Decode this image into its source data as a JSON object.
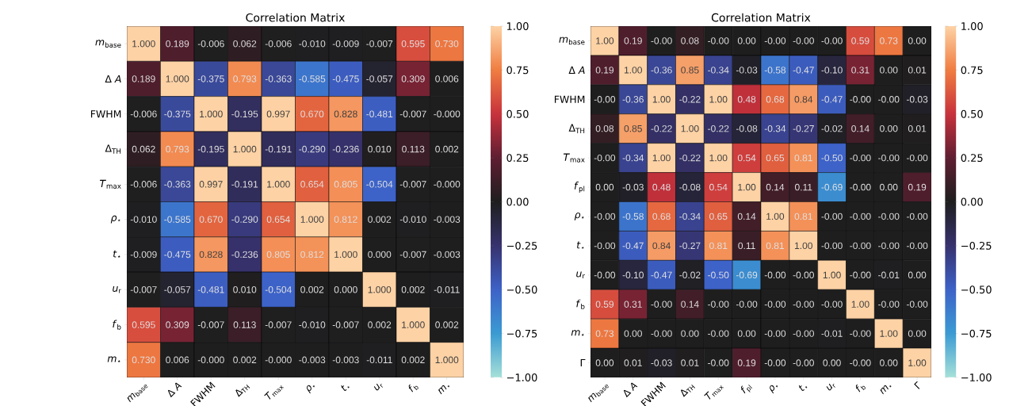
{
  "chart_data": [
    {
      "type": "heatmap",
      "title": "Correlation Matrix",
      "categories": [
        "*m*$_{base}$",
        "Δ *A*",
        "FWHM",
        "Δ$_{TH}$",
        "*T*$_{max}$",
        "*ρ*$_{⋆}$",
        "*t*$_{⋆}$",
        "*u*$_{r}$",
        "*f*$_{b}$",
        "*m*$_{⋆}$"
      ],
      "y_categories": [
        "*m*$_{base}$",
        "Δ *A*",
        "FWHM",
        "Δ$_{TH}$",
        "*T*$_{max}$",
        "*ρ*$_{⋆}$",
        "*t*$_{⋆}$",
        "*u*$_{r}$",
        "*f*$_{b}$",
        "*m*$_{⋆}$"
      ],
      "cells": [
        [
          1.0,
          0.189,
          -0.006,
          0.062,
          -0.006,
          -0.01,
          -0.009,
          -0.007,
          0.595,
          0.73
        ],
        [
          0.189,
          1.0,
          -0.375,
          0.793,
          -0.363,
          -0.585,
          -0.475,
          -0.057,
          0.309,
          0.006
        ],
        [
          -0.006,
          -0.375,
          1.0,
          -0.195,
          0.997,
          0.67,
          0.828,
          -0.481,
          -0.007,
          -0.0
        ],
        [
          0.062,
          0.793,
          -0.195,
          1.0,
          -0.191,
          -0.29,
          -0.236,
          0.01,
          0.113,
          0.002
        ],
        [
          -0.006,
          -0.363,
          0.997,
          -0.191,
          1.0,
          0.654,
          0.805,
          -0.504,
          -0.007,
          -0.0
        ],
        [
          -0.01,
          -0.585,
          0.67,
          -0.29,
          0.654,
          1.0,
          0.812,
          0.002,
          -0.01,
          -0.003
        ],
        [
          -0.009,
          -0.475,
          0.828,
          -0.236,
          0.805,
          0.812,
          1.0,
          0.0,
          -0.007,
          -0.003
        ],
        [
          -0.007,
          -0.057,
          -0.481,
          0.01,
          -0.504,
          0.002,
          0.0,
          1.0,
          0.002,
          -0.011
        ],
        [
          0.595,
          0.309,
          -0.007,
          0.113,
          -0.007,
          -0.01,
          -0.007,
          0.002,
          1.0,
          0.002
        ],
        [
          0.73,
          0.006,
          -0.0,
          0.002,
          -0.0,
          -0.003,
          -0.003,
          -0.011,
          0.002,
          1.0
        ]
      ],
      "cell_labels": [
        [
          "1.000",
          "0.189",
          "-0.006",
          "0.062",
          "-0.006",
          "-0.010",
          "-0.009",
          "-0.007",
          "0.595",
          "0.730"
        ],
        [
          "0.189",
          "1.000",
          "-0.375",
          "0.793",
          "-0.363",
          "-0.585",
          "-0.475",
          "-0.057",
          "0.309",
          "0.006"
        ],
        [
          "-0.006",
          "-0.375",
          "1.000",
          "-0.195",
          "0.997",
          "0.670",
          "0.828",
          "-0.481",
          "-0.007",
          "-0.000"
        ],
        [
          "0.062",
          "0.793",
          "-0.195",
          "1.000",
          "-0.191",
          "-0.290",
          "-0.236",
          "0.010",
          "0.113",
          "0.002"
        ],
        [
          "-0.006",
          "-0.363",
          "0.997",
          "-0.191",
          "1.000",
          "0.654",
          "0.805",
          "-0.504",
          "-0.007",
          "-0.000"
        ],
        [
          "-0.010",
          "-0.585",
          "0.670",
          "-0.290",
          "0.654",
          "1.000",
          "0.812",
          "0.002",
          "-0.010",
          "-0.003"
        ],
        [
          "-0.009",
          "-0.475",
          "0.828",
          "-0.236",
          "0.805",
          "0.812",
          "1.000",
          "0.000",
          "-0.007",
          "-0.003"
        ],
        [
          "-0.007",
          "-0.057",
          "-0.481",
          "0.010",
          "-0.504",
          "0.002",
          "0.000",
          "1.000",
          "0.002",
          "-0.011"
        ],
        [
          "0.595",
          "0.309",
          "-0.007",
          "0.113",
          "-0.007",
          "-0.010",
          "-0.007",
          "0.002",
          "1.000",
          "0.002"
        ],
        [
          "0.730",
          "0.006",
          "-0.000",
          "0.002",
          "-0.000",
          "-0.003",
          "-0.003",
          "-0.011",
          "0.002",
          "1.000"
        ]
      ],
      "clim": [
        -1,
        1
      ],
      "cticks": [
        {
          "value": -1,
          "label": "−1.00"
        },
        {
          "value": -0.75,
          "label": "−0.75"
        },
        {
          "value": -0.5,
          "label": "−0.50"
        },
        {
          "value": -0.25,
          "label": "−0.25"
        },
        {
          "value": 0,
          "label": "0.00"
        },
        {
          "value": 0.25,
          "label": "0.25"
        },
        {
          "value": 0.5,
          "label": "0.50"
        },
        {
          "value": 0.75,
          "label": "0.75"
        },
        {
          "value": 1,
          "label": "1.00"
        }
      ]
    },
    {
      "type": "heatmap",
      "title": "Correlation Matrix",
      "categories": [
        "*m*$_{base}$",
        "Δ *A*",
        "FWHM",
        "Δ$_{TH}$",
        "*T*$_{max}$",
        "*f*$_{pl}$",
        "*ρ*$_{⋆}$",
        "*t*$_{⋆}$",
        "*u*$_{r}$",
        "*f*$_{b}$",
        "*m*$_{⋆}$",
        "Γ"
      ],
      "y_categories": [
        "*m*$_{base}$",
        "Δ *A*",
        "FWHM",
        "Δ$_{TH}$",
        "*T*$_{max}$",
        "*f*$_{pl}$",
        "*ρ*$_{⋆}$",
        "*t*$_{⋆}$",
        "*u*$_{r}$",
        "*f*$_{b}$",
        "*m*$_{⋆}$",
        "Γ"
      ],
      "cells": [
        [
          1.0,
          0.19,
          -0.0,
          0.08,
          -0.0,
          0.0,
          -0.0,
          -0.0,
          -0.0,
          0.59,
          0.73,
          0.0
        ],
        [
          0.19,
          1.0,
          -0.36,
          0.85,
          -0.34,
          -0.03,
          -0.58,
          -0.47,
          -0.1,
          0.31,
          0.0,
          0.01
        ],
        [
          -0.0,
          -0.36,
          1.0,
          -0.22,
          1.0,
          0.48,
          0.68,
          0.84,
          -0.47,
          -0.0,
          -0.0,
          -0.03
        ],
        [
          0.08,
          0.85,
          -0.22,
          1.0,
          -0.22,
          -0.08,
          -0.34,
          -0.27,
          -0.02,
          0.14,
          0.0,
          0.01
        ],
        [
          -0.0,
          -0.34,
          1.0,
          -0.22,
          1.0,
          0.54,
          0.65,
          0.81,
          -0.5,
          -0.0,
          -0.0,
          -0.0
        ],
        [
          0.0,
          -0.03,
          0.48,
          -0.08,
          0.54,
          1.0,
          0.14,
          0.11,
          -0.69,
          -0.0,
          0.0,
          0.19
        ],
        [
          -0.0,
          -0.58,
          0.68,
          -0.34,
          0.65,
          0.14,
          1.0,
          0.81,
          -0.0,
          -0.0,
          -0.0,
          -0.0
        ],
        [
          -0.0,
          -0.47,
          0.84,
          -0.27,
          0.81,
          0.11,
          0.81,
          1.0,
          -0.0,
          -0.0,
          -0.0,
          -0.0
        ],
        [
          -0.0,
          -0.1,
          -0.47,
          -0.02,
          -0.5,
          -0.69,
          -0.0,
          -0.0,
          1.0,
          -0.0,
          -0.01,
          0.0
        ],
        [
          0.59,
          0.31,
          -0.0,
          0.14,
          -0.0,
          -0.0,
          -0.0,
          -0.0,
          -0.0,
          1.0,
          -0.0,
          -0.0
        ],
        [
          0.73,
          0.0,
          -0.0,
          0.0,
          -0.0,
          0.0,
          -0.0,
          -0.0,
          -0.01,
          -0.0,
          1.0,
          0.0
        ],
        [
          0.0,
          0.01,
          -0.03,
          0.01,
          -0.0,
          0.19,
          -0.0,
          -0.0,
          0.0,
          -0.0,
          0.0,
          1.0
        ]
      ],
      "cell_labels": [
        [
          "1.00",
          "0.19",
          "-0.00",
          "0.08",
          "-0.00",
          "0.00",
          "-0.00",
          "-0.00",
          "-0.00",
          "0.59",
          "0.73",
          "0.00"
        ],
        [
          "0.19",
          "1.00",
          "-0.36",
          "0.85",
          "-0.34",
          "-0.03",
          "-0.58",
          "-0.47",
          "-0.10",
          "0.31",
          "0.00",
          "0.01"
        ],
        [
          "-0.00",
          "-0.36",
          "1.00",
          "-0.22",
          "1.00",
          "0.48",
          "0.68",
          "0.84",
          "-0.47",
          "-0.00",
          "-0.00",
          "-0.03"
        ],
        [
          "0.08",
          "0.85",
          "-0.22",
          "1.00",
          "-0.22",
          "-0.08",
          "-0.34",
          "-0.27",
          "-0.02",
          "0.14",
          "0.00",
          "0.01"
        ],
        [
          "-0.00",
          "-0.34",
          "1.00",
          "-0.22",
          "1.00",
          "0.54",
          "0.65",
          "0.81",
          "-0.50",
          "-0.00",
          "-0.00",
          "-0.00"
        ],
        [
          "0.00",
          "-0.03",
          "0.48",
          "-0.08",
          "0.54",
          "1.00",
          "0.14",
          "0.11",
          "-0.69",
          "-0.00",
          "0.00",
          "0.19"
        ],
        [
          "-0.00",
          "-0.58",
          "0.68",
          "-0.34",
          "0.65",
          "0.14",
          "1.00",
          "0.81",
          "-0.00",
          "-0.00",
          "-0.00",
          "-0.00"
        ],
        [
          "-0.00",
          "-0.47",
          "0.84",
          "-0.27",
          "0.81",
          "0.11",
          "0.81",
          "1.00",
          "-0.00",
          "-0.00",
          "-0.00",
          "-0.00"
        ],
        [
          "-0.00",
          "-0.10",
          "-0.47",
          "-0.02",
          "-0.50",
          "-0.69",
          "-0.00",
          "-0.00",
          "1.00",
          "-0.00",
          "-0.01",
          "0.00"
        ],
        [
          "0.59",
          "0.31",
          "-0.00",
          "0.14",
          "-0.00",
          "-0.00",
          "-0.00",
          "-0.00",
          "-0.00",
          "1.00",
          "-0.00",
          "-0.00"
        ],
        [
          "0.73",
          "0.00",
          "-0.00",
          "0.00",
          "-0.00",
          "0.00",
          "-0.00",
          "-0.00",
          "-0.01",
          "-0.00",
          "1.00",
          "0.00"
        ],
        [
          "0.00",
          "0.01",
          "-0.03",
          "0.01",
          "-0.00",
          "0.19",
          "-0.00",
          "-0.00",
          "0.00",
          "-0.00",
          "0.00",
          "1.00"
        ]
      ],
      "clim": [
        -1,
        1
      ],
      "cticks": [
        {
          "value": -1,
          "label": "−1.00"
        },
        {
          "value": -0.75,
          "label": "−0.75"
        },
        {
          "value": -0.5,
          "label": "−0.50"
        },
        {
          "value": -0.25,
          "label": "−0.25"
        },
        {
          "value": 0,
          "label": "0.00"
        },
        {
          "value": 0.25,
          "label": "0.25"
        },
        {
          "value": 0.5,
          "label": "0.50"
        },
        {
          "value": 0.75,
          "label": "0.75"
        },
        {
          "value": 1,
          "label": "1.00"
        }
      ]
    }
  ]
}
